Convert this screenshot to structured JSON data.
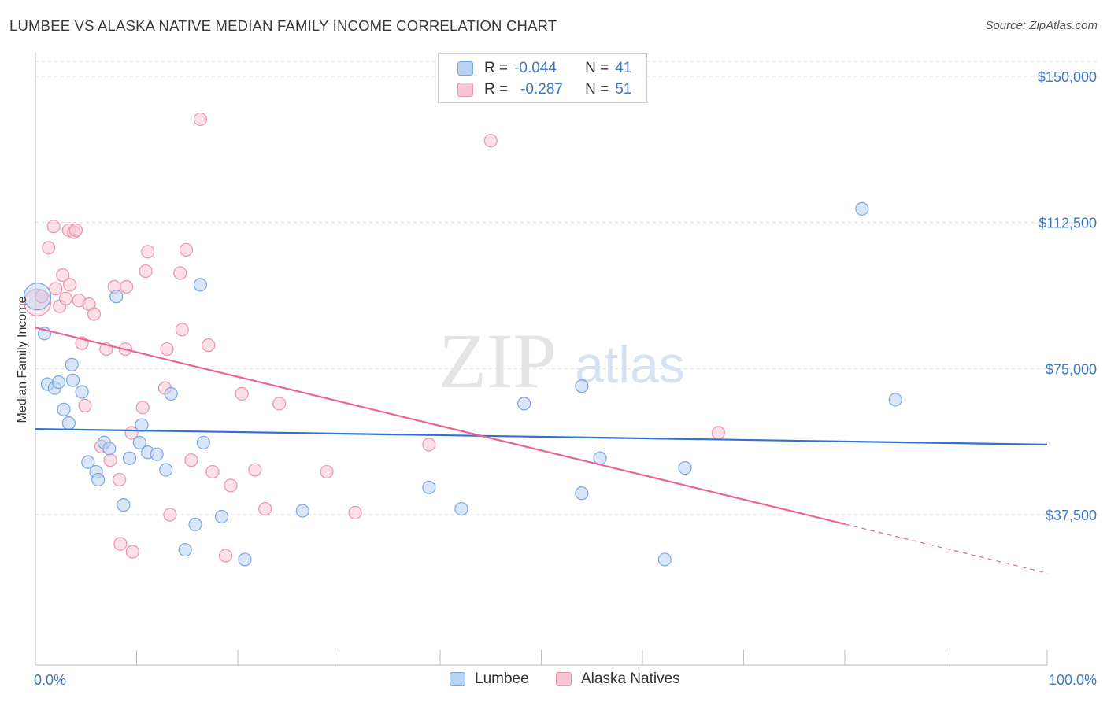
{
  "header": {
    "title": "LUMBEE VS ALASKA NATIVE MEDIAN FAMILY INCOME CORRELATION CHART",
    "source": "Source: ZipAtlas.com"
  },
  "legend": {
    "rows": [
      {
        "r_label": "R =",
        "r_value": "-0.044",
        "n_label": "N =",
        "n_value": "41"
      },
      {
        "r_label": "R =",
        "r_value": "-0.287",
        "n_label": "N =",
        "n_value": "51"
      }
    ]
  },
  "colors": {
    "lumbee_fill": "#b8d2f3",
    "lumbee_stroke": "#7aa6e0",
    "lumbee_line": "#2f72cf",
    "alaska_fill": "#f8c6d3",
    "alaska_stroke": "#ec93ad",
    "alaska_line": "#e8649a",
    "grid": "#dddddd",
    "tick_text": "#3d78c8"
  },
  "watermark": {
    "zip": "ZIP",
    "atlas": "atlas"
  },
  "chart_data": {
    "type": "scatter",
    "title": "LUMBEE VS ALASKA NATIVE MEDIAN FAMILY INCOME CORRELATION CHART",
    "xlabel": "",
    "ylabel": "Median Family Income",
    "xlim": [
      0,
      100
    ],
    "ylim": [
      0,
      155000
    ],
    "x_tick_labels": [
      "0.0%",
      "100.0%"
    ],
    "y_ticks": [
      37500,
      75000,
      112500,
      150000
    ],
    "y_tick_labels": [
      "$37,500",
      "$75,000",
      "$112,500",
      "$150,000"
    ],
    "grid": true,
    "series": [
      {
        "name": "Lumbee",
        "r": -0.044,
        "n": 41,
        "trend": {
          "x": [
            0,
            100
          ],
          "y": [
            59500,
            55500
          ],
          "solid_to": 100
        },
        "points": [
          {
            "x": 0.2,
            "y": 93500,
            "large": true
          },
          {
            "x": 0.9,
            "y": 84000
          },
          {
            "x": 1.2,
            "y": 71000
          },
          {
            "x": 1.9,
            "y": 70000
          },
          {
            "x": 2.3,
            "y": 71500
          },
          {
            "x": 2.8,
            "y": 64500
          },
          {
            "x": 3.3,
            "y": 61000
          },
          {
            "x": 3.6,
            "y": 76000
          },
          {
            "x": 3.7,
            "y": 72000
          },
          {
            "x": 4.6,
            "y": 69000
          },
          {
            "x": 5.2,
            "y": 51000
          },
          {
            "x": 6.0,
            "y": 48500
          },
          {
            "x": 6.2,
            "y": 46500
          },
          {
            "x": 6.8,
            "y": 56000
          },
          {
            "x": 7.3,
            "y": 54500
          },
          {
            "x": 8.0,
            "y": 93500
          },
          {
            "x": 8.7,
            "y": 40000
          },
          {
            "x": 9.3,
            "y": 52000
          },
          {
            "x": 10.5,
            "y": 60500
          },
          {
            "x": 10.3,
            "y": 56000
          },
          {
            "x": 11.1,
            "y": 53500
          },
          {
            "x": 12.0,
            "y": 53000
          },
          {
            "x": 12.9,
            "y": 49000
          },
          {
            "x": 13.4,
            "y": 68500
          },
          {
            "x": 14.8,
            "y": 28500
          },
          {
            "x": 15.8,
            "y": 35000
          },
          {
            "x": 16.3,
            "y": 96500
          },
          {
            "x": 16.6,
            "y": 56000
          },
          {
            "x": 18.4,
            "y": 37000
          },
          {
            "x": 20.7,
            "y": 26000
          },
          {
            "x": 26.4,
            "y": 38500
          },
          {
            "x": 38.9,
            "y": 44500
          },
          {
            "x": 42.1,
            "y": 39000
          },
          {
            "x": 48.3,
            "y": 66000
          },
          {
            "x": 54.0,
            "y": 70500
          },
          {
            "x": 54.0,
            "y": 43000
          },
          {
            "x": 55.8,
            "y": 52000
          },
          {
            "x": 62.2,
            "y": 26000
          },
          {
            "x": 64.2,
            "y": 49500
          },
          {
            "x": 81.7,
            "y": 116000
          },
          {
            "x": 85.0,
            "y": 67000
          }
        ]
      },
      {
        "name": "Alaska Natives",
        "r": -0.287,
        "n": 51,
        "trend": {
          "x": [
            0,
            100
          ],
          "y": [
            85500,
            22500
          ],
          "solid_to": 80
        },
        "points": [
          {
            "x": 0.2,
            "y": 92000,
            "large": true
          },
          {
            "x": 1.3,
            "y": 106000
          },
          {
            "x": 1.8,
            "y": 111500
          },
          {
            "x": 2.0,
            "y": 95500
          },
          {
            "x": 2.4,
            "y": 91000
          },
          {
            "x": 2.7,
            "y": 99000
          },
          {
            "x": 3.0,
            "y": 93000
          },
          {
            "x": 3.3,
            "y": 110500
          },
          {
            "x": 3.4,
            "y": 96500
          },
          {
            "x": 3.8,
            "y": 110000
          },
          {
            "x": 4.0,
            "y": 110500
          },
          {
            "x": 4.3,
            "y": 92500
          },
          {
            "x": 4.6,
            "y": 81500
          },
          {
            "x": 4.9,
            "y": 65500
          },
          {
            "x": 5.3,
            "y": 91500
          },
          {
            "x": 5.8,
            "y": 89000
          },
          {
            "x": 6.5,
            "y": 55000
          },
          {
            "x": 7.0,
            "y": 80000
          },
          {
            "x": 7.4,
            "y": 51500
          },
          {
            "x": 7.8,
            "y": 96000
          },
          {
            "x": 8.3,
            "y": 46500
          },
          {
            "x": 8.4,
            "y": 30000
          },
          {
            "x": 8.9,
            "y": 80000
          },
          {
            "x": 9.0,
            "y": 96000
          },
          {
            "x": 9.5,
            "y": 58500
          },
          {
            "x": 9.6,
            "y": 28000
          },
          {
            "x": 10.6,
            "y": 65000
          },
          {
            "x": 10.9,
            "y": 100000
          },
          {
            "x": 11.1,
            "y": 105000
          },
          {
            "x": 12.8,
            "y": 70000
          },
          {
            "x": 13.0,
            "y": 80000
          },
          {
            "x": 13.3,
            "y": 37500
          },
          {
            "x": 14.3,
            "y": 99500
          },
          {
            "x": 14.5,
            "y": 85000
          },
          {
            "x": 14.9,
            "y": 105500
          },
          {
            "x": 15.4,
            "y": 51500
          },
          {
            "x": 16.3,
            "y": 139000
          },
          {
            "x": 17.1,
            "y": 81000
          },
          {
            "x": 17.5,
            "y": 48500
          },
          {
            "x": 18.8,
            "y": 27000
          },
          {
            "x": 19.3,
            "y": 45000
          },
          {
            "x": 20.4,
            "y": 68500
          },
          {
            "x": 21.7,
            "y": 49000
          },
          {
            "x": 22.7,
            "y": 39000
          },
          {
            "x": 24.1,
            "y": 66000
          },
          {
            "x": 28.8,
            "y": 48500
          },
          {
            "x": 31.6,
            "y": 38000
          },
          {
            "x": 38.9,
            "y": 55500
          },
          {
            "x": 45.0,
            "y": 133500
          },
          {
            "x": 67.5,
            "y": 58500
          },
          {
            "x": 0.6,
            "y": 93500
          }
        ]
      }
    ]
  },
  "bottom_legend": {
    "items": [
      "Lumbee",
      "Alaska Natives"
    ]
  }
}
